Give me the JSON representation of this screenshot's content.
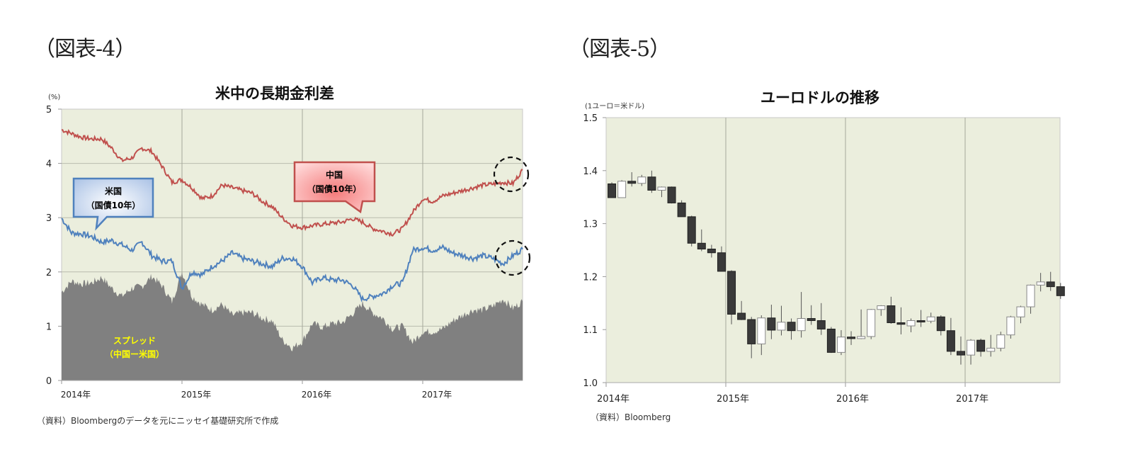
{
  "figure4": {
    "label": "（図表-4）",
    "title": "米中の長期金利差",
    "unit": "(%)",
    "source": "（資料）Bloombergのデータを元にニッセイ基礎研究所で作成",
    "callouts": {
      "us": [
        "米国",
        "（国債10年）"
      ],
      "cn": [
        "中国",
        "（国債10年）"
      ],
      "spread": [
        "スプレッド",
        "（中国ー米国）"
      ]
    },
    "colors": {
      "china": "#C0504D",
      "us": "#4F81BD",
      "spread": "#808080",
      "plot_bg": "#EBEEDD",
      "callout_text_spread": "#FFFF00"
    }
  },
  "figure5": {
    "label": "（図表-5）",
    "title": "ユーロドルの推移",
    "unit": "(1ユーロ＝米ドル)",
    "source": "（資料）Bloomberg",
    "colors": {
      "down": "#3a3a3a",
      "up": "#ffffff",
      "plot_bg": "#EBEEDD"
    }
  },
  "chart_data": [
    {
      "type": "line",
      "title": "米中の長期金利差",
      "ylabel": "(%)",
      "xlabel": "",
      "ylim": [
        0,
        5
      ],
      "yticks": [
        0,
        1,
        2,
        3,
        4,
        5
      ],
      "xticks": [
        "2014年",
        "2015年",
        "2016年",
        "2017年"
      ],
      "grid": true,
      "x": [
        2014.0,
        2014.083,
        2014.167,
        2014.25,
        2014.333,
        2014.417,
        2014.5,
        2014.583,
        2014.667,
        2014.75,
        2014.833,
        2014.917,
        2015.0,
        2015.083,
        2015.167,
        2015.25,
        2015.333,
        2015.417,
        2015.5,
        2015.583,
        2015.667,
        2015.75,
        2015.833,
        2015.917,
        2016.0,
        2016.083,
        2016.167,
        2016.25,
        2016.333,
        2016.417,
        2016.5,
        2016.583,
        2016.667,
        2016.75,
        2016.833,
        2016.917,
        2017.0,
        2017.083,
        2017.167,
        2017.25,
        2017.333,
        2017.417,
        2017.5,
        2017.583,
        2017.667,
        2017.75,
        2017.83
      ],
      "series": [
        {
          "name": "中国（国債10年）",
          "type": "line",
          "color": "#C0504D",
          "values": [
            4.62,
            4.55,
            4.48,
            4.45,
            4.45,
            4.28,
            4.05,
            4.1,
            4.28,
            4.22,
            3.95,
            3.65,
            3.7,
            3.55,
            3.35,
            3.4,
            3.6,
            3.55,
            3.5,
            3.45,
            3.3,
            3.2,
            3.0,
            2.85,
            2.82,
            2.85,
            2.88,
            2.9,
            2.92,
            2.98,
            2.92,
            2.8,
            2.75,
            2.7,
            2.8,
            3.1,
            3.35,
            3.3,
            3.4,
            3.45,
            3.5,
            3.55,
            3.6,
            3.62,
            3.65,
            3.63,
            3.88
          ]
        },
        {
          "name": "米国（国債10年）",
          "type": "line",
          "color": "#4F81BD",
          "values": [
            2.99,
            2.72,
            2.7,
            2.65,
            2.55,
            2.58,
            2.5,
            2.4,
            2.55,
            2.3,
            2.2,
            2.2,
            1.7,
            2.0,
            1.95,
            2.1,
            2.2,
            2.35,
            2.25,
            2.2,
            2.15,
            2.1,
            2.25,
            2.25,
            2.1,
            1.8,
            1.9,
            1.85,
            1.85,
            1.75,
            1.5,
            1.55,
            1.6,
            1.75,
            1.8,
            2.4,
            2.45,
            2.4,
            2.45,
            2.35,
            2.3,
            2.25,
            2.3,
            2.25,
            2.15,
            2.3,
            2.42
          ]
        },
        {
          "name": "スプレッド（中国ー米国）",
          "type": "area",
          "color": "#808080",
          "values": [
            1.63,
            1.83,
            1.78,
            1.8,
            1.9,
            1.7,
            1.55,
            1.7,
            1.73,
            1.92,
            1.75,
            1.45,
            2.0,
            1.55,
            1.4,
            1.3,
            1.4,
            1.2,
            1.25,
            1.25,
            1.15,
            1.1,
            0.75,
            0.6,
            0.72,
            1.05,
            0.98,
            1.05,
            1.07,
            1.23,
            1.42,
            1.25,
            1.15,
            0.95,
            1.0,
            0.7,
            0.9,
            0.9,
            0.95,
            1.1,
            1.2,
            1.3,
            1.3,
            1.37,
            1.5,
            1.33,
            1.46
          ]
        }
      ],
      "annotations": [
        "米国（国債10年）",
        "中国（国債10年）",
        "スプレッド（中国ー米国）",
        "dashed circles at latest values"
      ]
    },
    {
      "type": "candlestick",
      "title": "ユーロドルの推移",
      "ylabel": "(1ユーロ＝米ドル)",
      "xlabel": "",
      "ylim": [
        1.0,
        1.5
      ],
      "yticks": [
        1.0,
        1.1,
        1.2,
        1.3,
        1.4,
        1.5
      ],
      "xticks": [
        "2014年",
        "2015年",
        "2016年",
        "2017年"
      ],
      "grid": "vertical year lines",
      "categories": [
        "2014-01",
        "2014-02",
        "2014-03",
        "2014-04",
        "2014-05",
        "2014-06",
        "2014-07",
        "2014-08",
        "2014-09",
        "2014-10",
        "2014-11",
        "2014-12",
        "2015-01",
        "2015-02",
        "2015-03",
        "2015-04",
        "2015-05",
        "2015-06",
        "2015-07",
        "2015-08",
        "2015-09",
        "2015-10",
        "2015-11",
        "2015-12",
        "2016-01",
        "2016-02",
        "2016-03",
        "2016-04",
        "2016-05",
        "2016-06",
        "2016-07",
        "2016-08",
        "2016-09",
        "2016-10",
        "2016-11",
        "2016-12",
        "2017-01",
        "2017-02",
        "2017-03",
        "2017-04",
        "2017-05",
        "2017-06",
        "2017-07",
        "2017-08",
        "2017-09",
        "2017-10"
      ],
      "open": [
        1.375,
        1.349,
        1.38,
        1.376,
        1.388,
        1.363,
        1.369,
        1.339,
        1.313,
        1.263,
        1.252,
        1.245,
        1.21,
        1.131,
        1.119,
        1.073,
        1.122,
        1.099,
        1.114,
        1.098,
        1.121,
        1.117,
        1.101,
        1.057,
        1.086,
        1.083,
        1.087,
        1.138,
        1.145,
        1.113,
        1.107,
        1.117,
        1.116,
        1.124,
        1.098,
        1.059,
        1.052,
        1.08,
        1.059,
        1.065,
        1.09,
        1.124,
        1.143,
        1.184,
        1.19,
        1.181
      ],
      "high": [
        1.378,
        1.382,
        1.397,
        1.392,
        1.4,
        1.37,
        1.37,
        1.344,
        1.315,
        1.289,
        1.26,
        1.257,
        1.212,
        1.154,
        1.124,
        1.127,
        1.147,
        1.145,
        1.121,
        1.171,
        1.146,
        1.15,
        1.105,
        1.099,
        1.097,
        1.138,
        1.139,
        1.146,
        1.162,
        1.142,
        1.121,
        1.137,
        1.132,
        1.127,
        1.122,
        1.087,
        1.082,
        1.083,
        1.09,
        1.096,
        1.126,
        1.145,
        1.185,
        1.207,
        1.209,
        1.188
      ],
      "low": [
        1.349,
        1.349,
        1.37,
        1.371,
        1.358,
        1.35,
        1.338,
        1.313,
        1.257,
        1.248,
        1.236,
        1.21,
        1.11,
        1.118,
        1.046,
        1.052,
        1.082,
        1.089,
        1.081,
        1.085,
        1.109,
        1.09,
        1.056,
        1.052,
        1.071,
        1.082,
        1.082,
        1.126,
        1.111,
        1.091,
        1.095,
        1.105,
        1.112,
        1.089,
        1.052,
        1.034,
        1.034,
        1.049,
        1.049,
        1.059,
        1.083,
        1.112,
        1.13,
        1.172,
        1.173,
        1.158
      ],
      "close": [
        1.349,
        1.38,
        1.376,
        1.388,
        1.363,
        1.369,
        1.339,
        1.313,
        1.263,
        1.252,
        1.245,
        1.21,
        1.129,
        1.119,
        1.073,
        1.122,
        1.099,
        1.114,
        1.098,
        1.121,
        1.117,
        1.101,
        1.057,
        1.086,
        1.083,
        1.087,
        1.138,
        1.145,
        1.113,
        1.11,
        1.117,
        1.116,
        1.124,
        1.098,
        1.059,
        1.052,
        1.08,
        1.059,
        1.065,
        1.09,
        1.124,
        1.143,
        1.184,
        1.19,
        1.181,
        1.164
      ]
    }
  ]
}
